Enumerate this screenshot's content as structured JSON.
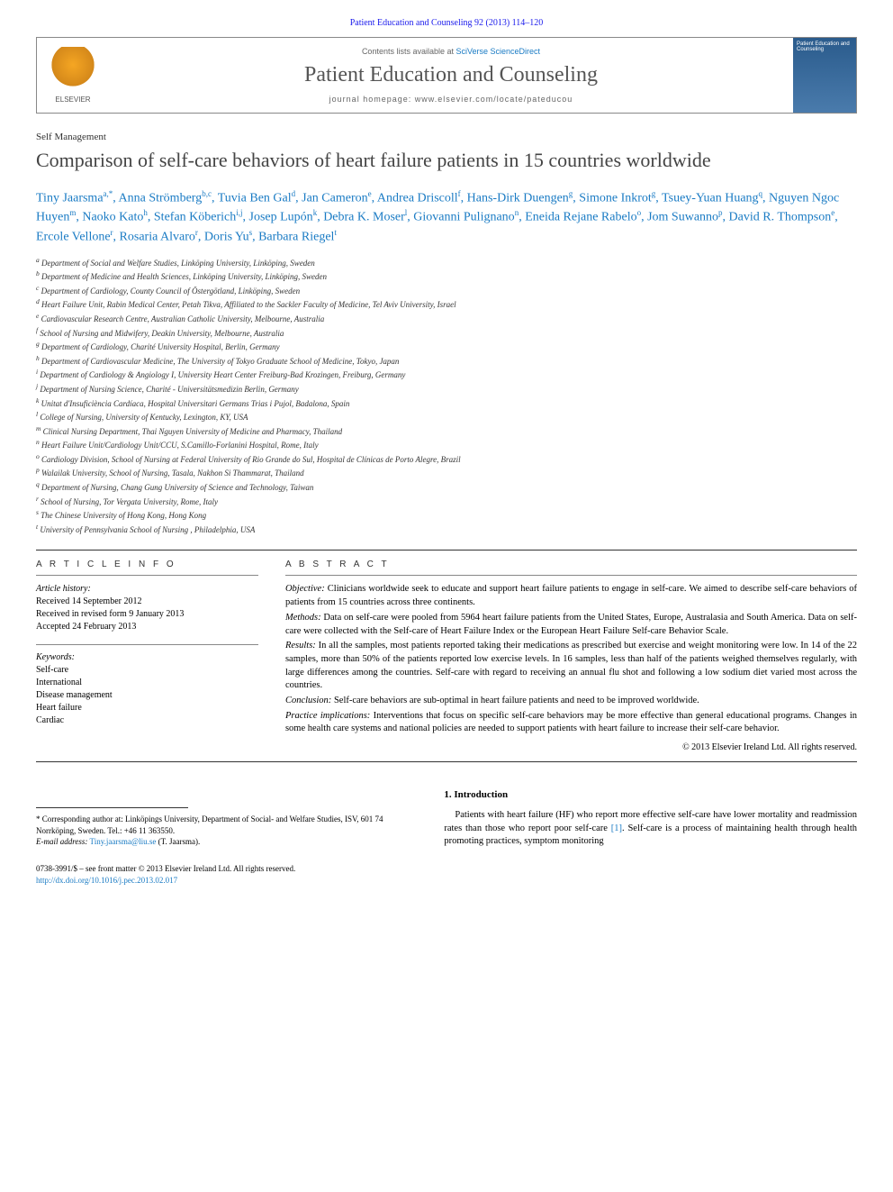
{
  "journal_ref": "Patient Education and Counseling 92 (2013) 114–120",
  "header": {
    "contents_prefix": "Contents lists available at ",
    "contents_link": "SciVerse ScienceDirect",
    "journal_title": "Patient Education and Counseling",
    "homepage_prefix": "journal homepage: ",
    "homepage_url": "www.elsevier.com/locate/pateducou",
    "elsevier": "ELSEVIER",
    "cover_text": "Patient Education and Counseling"
  },
  "section_label": "Self Management",
  "title": "Comparison of self-care behaviors of heart failure patients in 15 countries worldwide",
  "authors_html": "Tiny Jaarsma<sup>a,*</sup>, Anna Strömberg<sup>b,c</sup>, Tuvia Ben Gal<sup>d</sup>, Jan Cameron<sup>e</sup>, Andrea Driscoll<sup>f</sup>, Hans-Dirk Duengen<sup>g</sup>, Simone Inkrot<sup>g</sup>, Tsuey-Yuan Huang<sup>q</sup>, Nguyen Ngoc Huyen<sup>m</sup>, Naoko Kato<sup>h</sup>, Stefan Köberich<sup>i,j</sup>, Josep Lupón<sup>k</sup>, Debra K. Moser<sup>l</sup>, Giovanni Pulignano<sup>n</sup>, Eneida Rejane Rabelo<sup>o</sup>, Jom Suwanno<sup>p</sup>, David R. Thompson<sup>e</sup>, Ercole Vellone<sup>r</sup>, Rosaria Alvaro<sup>r</sup>, Doris Yu<sup>s</sup>, Barbara Riegel<sup>t</sup>",
  "affiliations": [
    "a Department of Social and Welfare Studies, Linköping University, Linköping, Sweden",
    "b Department of Medicine and Health Sciences, Linköping University, Linköping, Sweden",
    "c Department of Cardiology, County Council of Östergötland, Linköping, Sweden",
    "d Heart Failure Unit, Rabin Medical Center, Petah Tikva, Affiliated to the Sackler Faculty of Medicine, Tel Aviv University, Israel",
    "e Cardiovascular Research Centre, Australian Catholic University, Melbourne, Australia",
    "f School of Nursing and Midwifery, Deakin University, Melbourne, Australia",
    "g Department of Cardiology, Charité University Hospital, Berlin, Germany",
    "h Department of Cardiovascular Medicine, The University of Tokyo Graduate School of Medicine, Tokyo, Japan",
    "i Department of Cardiology & Angiology I, University Heart Center Freiburg-Bad Krozingen, Freiburg, Germany",
    "j Department of Nursing Science, Charité - Universitätsmedizin Berlin, Germany",
    "k Unitat d'Insuficiència Cardíaca, Hospital Universitari Germans Trias i Pujol, Badalona, Spain",
    "l College of Nursing, University of Kentucky, Lexington, KY, USA",
    "m Clinical Nursing Department, Thai Nguyen University of Medicine and Pharmacy, Thailand",
    "n Heart Failure Unit/Cardiology Unit/CCU, S.Camillo-Forlanini Hospital, Rome, Italy",
    "o Cardiology Division, School of Nursing at Federal University of Rio Grande do Sul, Hospital de Clínicas de Porto Alegre, Brazil",
    "p Walailak University, School of Nursing, Tasala, Nakhon Si Thammarat, Thailand",
    "q Department of Nursing, Chang Gung University of Science and Technology, Taiwan",
    "r School of Nursing, Tor Vergata University, Rome, Italy",
    "s The Chinese University of Hong Kong, Hong Kong",
    "t University of Pennsylvania School of Nursing , Philadelphia, USA"
  ],
  "info": {
    "heading": "A R T I C L E   I N F O",
    "history_label": "Article history:",
    "received": "Received 14 September 2012",
    "revised": "Received in revised form 9 January 2013",
    "accepted": "Accepted 24 February 2013",
    "keywords_label": "Keywords:",
    "keywords": [
      "Self-care",
      "International",
      "Disease management",
      "Heart failure",
      "Cardiac"
    ]
  },
  "abstract": {
    "heading": "A B S T R A C T",
    "objective_label": "Objective:",
    "objective": " Clinicians worldwide seek to educate and support heart failure patients to engage in self-care. We aimed to describe self-care behaviors of patients from 15 countries across three continents.",
    "methods_label": "Methods:",
    "methods": " Data on self-care were pooled from 5964 heart failure patients from the United States, Europe, Australasia and South America. Data on self-care were collected with the Self-care of Heart Failure Index or the European Heart Failure Self-care Behavior Scale.",
    "results_label": "Results:",
    "results": " In all the samples, most patients reported taking their medications as prescribed but exercise and weight monitoring were low. In 14 of the 22 samples, more than 50% of the patients reported low exercise levels. In 16 samples, less than half of the patients weighed themselves regularly, with large differences among the countries. Self-care with regard to receiving an annual flu shot and following a low sodium diet varied most across the countries.",
    "conclusion_label": "Conclusion:",
    "conclusion": " Self-care behaviors are sub-optimal in heart failure patients and need to be improved worldwide.",
    "practice_label": "Practice implications:",
    "practice": " Interventions that focus on specific self-care behaviors may be more effective than general educational programs. Changes in some health care systems and national policies are needed to support patients with heart failure to increase their self-care behavior.",
    "copyright": "© 2013 Elsevier Ireland Ltd. All rights reserved."
  },
  "intro": {
    "heading": "1. Introduction",
    "text_pre": "Patients with heart failure (HF) who report more effective self-care have lower mortality and readmission rates than those who report poor self-care ",
    "ref1": "[1]",
    "text_post": ". Self-care is a process of maintaining health through health promoting practices, symptom monitoring"
  },
  "footnote": {
    "corr_label": "* Corresponding author at: Linköpings University, Department of Social- and Welfare Studies, ISV, 601 74 Norrköping, Sweden. Tel.: +46 11 363550.",
    "email_label": "E-mail address:",
    "email": "Tiny.jaarsma@liu.se",
    "email_suffix": " (T. Jaarsma)."
  },
  "bottom": {
    "issn": "0738-3991/$ – see front matter © 2013 Elsevier Ireland Ltd. All rights reserved.",
    "doi": "http://dx.doi.org/10.1016/j.pec.2013.02.017"
  },
  "colors": {
    "link_blue": "#1a7bc4",
    "dark_blue": "#1a1aec",
    "text_gray": "#444444",
    "border_gray": "#888888"
  }
}
